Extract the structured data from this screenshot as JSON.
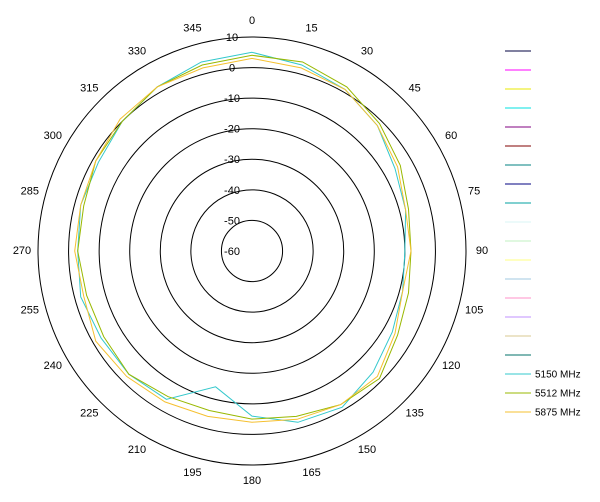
{
  "chart_data": {
    "type": "polar",
    "x": [
      0,
      15,
      30,
      45,
      60,
      75,
      90,
      105,
      120,
      135,
      150,
      165,
      180,
      195,
      210,
      225,
      240,
      255,
      270,
      285,
      300,
      315,
      330,
      345
    ],
    "xticks": [
      0,
      15,
      30,
      45,
      60,
      75,
      90,
      105,
      120,
      135,
      150,
      165,
      180,
      195,
      210,
      225,
      240,
      255,
      270,
      285,
      300,
      315,
      330,
      345
    ],
    "ylim": [
      -60,
      10
    ],
    "yticks": [
      -60,
      -50,
      -40,
      -30,
      -20,
      -10,
      0,
      10
    ],
    "grid": true,
    "legend": "right",
    "unlabeled_legend_colors": [
      "#000040",
      "#ff00ff",
      "#e8e800",
      "#00e0e0",
      "#800080",
      "#800000",
      "#008080",
      "#000080",
      "#00a0a0",
      "#d8f4f4",
      "#c0f0c0",
      "#ffff80",
      "#a0c8e0",
      "#ff90c8",
      "#c090ff",
      "#d8c890",
      "#00706a"
    ],
    "series": [
      {
        "name": "5150 MHz",
        "color": "#33c8cc",
        "values": [
          5,
          3,
          1,
          -2,
          -6,
          -8,
          -10,
          -9,
          -7,
          -4,
          -1,
          -2,
          -6,
          -14,
          -4,
          -3,
          -3,
          -2,
          -3,
          -2,
          -2,
          0,
          2,
          4
        ]
      },
      {
        "name": "5512 MHz",
        "color": "#99b800",
        "values": [
          4,
          4,
          2,
          -1,
          -4,
          -7,
          -8,
          -7,
          -5,
          -1,
          -2,
          -4,
          -5,
          -6,
          -5,
          -3,
          -4,
          -4,
          -3,
          -3,
          -1,
          0,
          2,
          3
        ]
      },
      {
        "name": "5875 MHz",
        "color": "#f5c030",
        "values": [
          3,
          2,
          1,
          -2,
          -5,
          -8,
          -8,
          -9,
          -6,
          -2,
          -2,
          -3,
          -4,
          -4,
          -3,
          -2,
          -1,
          -3,
          -2,
          -2,
          -1,
          1,
          2,
          2
        ]
      }
    ]
  }
}
